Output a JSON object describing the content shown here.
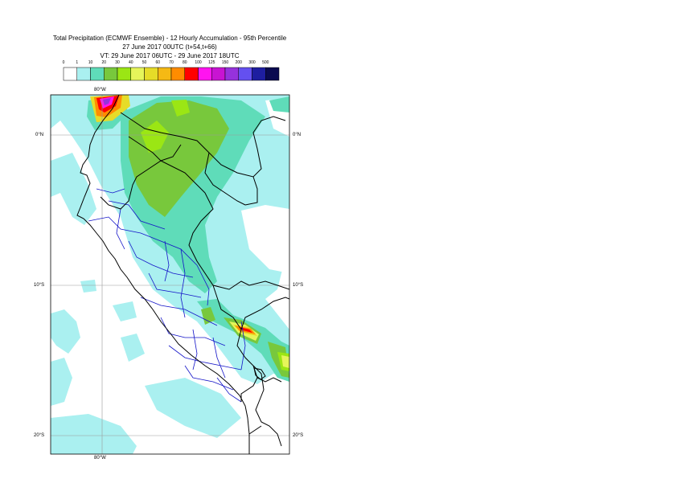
{
  "header": {
    "title": "Total Precipitation (ECMWF Ensemble) - 12 Hourly Accumulation - 95th Percentile",
    "run": "27 June 2017 00UTC (t+54,t+66)",
    "valid": "VT: 29 June 2017 06UTC - 29 June 2017 18UTC"
  },
  "legend": {
    "labels": [
      "0",
      "1",
      "10",
      "20",
      "30",
      "40",
      "50",
      "60",
      "70",
      "80",
      "100",
      "125",
      "150",
      "200",
      "300",
      "500"
    ],
    "colors": [
      "#ffffff",
      "#aaf0f0",
      "#5fdcb9",
      "#78c83c",
      "#9be614",
      "#e6f55a",
      "#e6dc28",
      "#f5b914",
      "#ff8c00",
      "#ff0000",
      "#ff14f0",
      "#c814d2",
      "#9632dc",
      "#6450f0",
      "#1e1ea0",
      "#0a0a50"
    ]
  },
  "map": {
    "lon_labels": [
      {
        "text": "80°W"
      }
    ],
    "lat_labels": [
      {
        "text": "0°N"
      },
      {
        "text": "10°S"
      },
      {
        "text": "20°S"
      }
    ]
  }
}
